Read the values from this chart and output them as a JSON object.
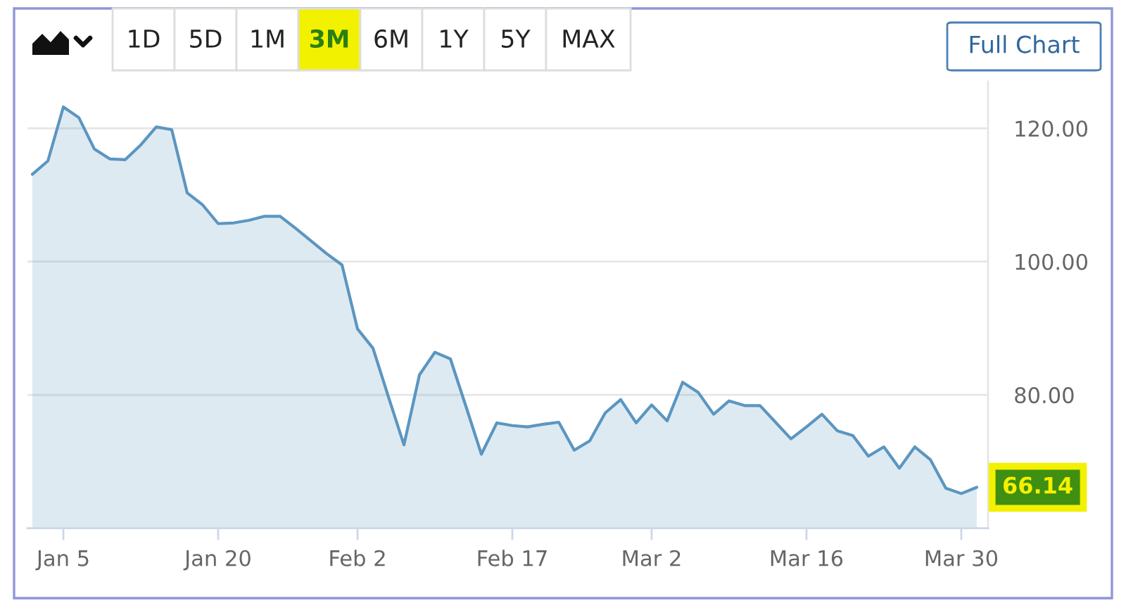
{
  "chart_data": {
    "type": "area",
    "categories": [
      null,
      null,
      "Jan 5",
      null,
      null,
      null,
      null,
      null,
      null,
      null,
      null,
      null,
      "Jan 20",
      null,
      null,
      null,
      null,
      null,
      null,
      null,
      null,
      "Feb 2",
      null,
      null,
      null,
      null,
      null,
      null,
      null,
      null,
      null,
      "Feb 17",
      null,
      null,
      null,
      null,
      null,
      null,
      null,
      null,
      "Mar 2",
      null,
      null,
      null,
      null,
      null,
      null,
      null,
      null,
      null,
      "Mar 16",
      null,
      null,
      null,
      null,
      null,
      null,
      null,
      null,
      null,
      "Mar 30",
      null
    ],
    "series": [
      {
        "color": "#5b96c0",
        "values": [
          113.1,
          115.1,
          123.2,
          121.6,
          116.9,
          115.4,
          115.3,
          117.5,
          120.2,
          119.8,
          110.3,
          108.5,
          105.7,
          105.8,
          106.2,
          106.8,
          106.8,
          105.0,
          103.1,
          101.2,
          99.5,
          89.9,
          87.0,
          79.7,
          72.5,
          83.0,
          86.4,
          85.4,
          78.3,
          71.1,
          75.8,
          75.4,
          75.2,
          75.6,
          75.9,
          71.7,
          73.1,
          77.3,
          79.3,
          75.8,
          78.5,
          76.1,
          81.9,
          80.4,
          77.1,
          79.1,
          78.4,
          78.4,
          75.9,
          73.4,
          75.2,
          77.1,
          74.6,
          73.9,
          70.8,
          72.2,
          69.0,
          72.2,
          70.3,
          66.0,
          65.2,
          66.14
        ],
        "value_labels": [
          null,
          null,
          null,
          null,
          null,
          null,
          null,
          null,
          null,
          null,
          null,
          null,
          null,
          null,
          null,
          null,
          null,
          null,
          null,
          null,
          null,
          null,
          null,
          null,
          null,
          null,
          null,
          null,
          null,
          null,
          null,
          null,
          null,
          null,
          null,
          null,
          null,
          null,
          null,
          null,
          null,
          null,
          null,
          null,
          null,
          null,
          null,
          null,
          null,
          null,
          null,
          null,
          null,
          null,
          null,
          null,
          null,
          null,
          null,
          null,
          null,
          "66.14"
        ]
      }
    ],
    "ylim": [
      60,
      127
    ],
    "yticks": [
      {
        "value": 80,
        "label": "80.00"
      },
      {
        "value": 100,
        "label": "100.00"
      },
      {
        "value": 120,
        "label": "120.00"
      }
    ],
    "grid": "y",
    "annotations": [
      "1D",
      "5D",
      "1M",
      "3M",
      "6M",
      "1Y",
      "5Y",
      "MAX",
      "Full Chart"
    ]
  }
}
